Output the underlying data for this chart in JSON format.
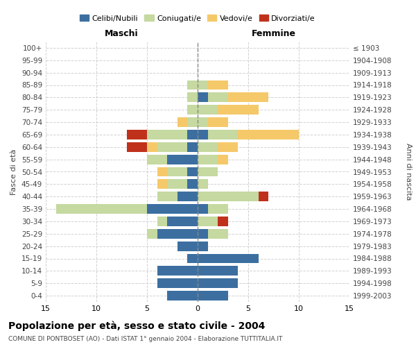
{
  "age_groups": [
    "0-4",
    "5-9",
    "10-14",
    "15-19",
    "20-24",
    "25-29",
    "30-34",
    "35-39",
    "40-44",
    "45-49",
    "50-54",
    "55-59",
    "60-64",
    "65-69",
    "70-74",
    "75-79",
    "80-84",
    "85-89",
    "90-94",
    "95-99",
    "100+"
  ],
  "birth_years": [
    "1999-2003",
    "1994-1998",
    "1989-1993",
    "1984-1988",
    "1979-1983",
    "1974-1978",
    "1969-1973",
    "1964-1968",
    "1959-1963",
    "1954-1958",
    "1949-1953",
    "1944-1948",
    "1939-1943",
    "1934-1938",
    "1929-1933",
    "1924-1928",
    "1919-1923",
    "1914-1918",
    "1909-1913",
    "1904-1908",
    "≤ 1903"
  ],
  "males": {
    "celibi": [
      3,
      4,
      4,
      1,
      2,
      4,
      3,
      5,
      2,
      1,
      1,
      3,
      1,
      1,
      0,
      0,
      0,
      0,
      0,
      0,
      0
    ],
    "coniugati": [
      0,
      0,
      0,
      0,
      0,
      1,
      1,
      9,
      2,
      2,
      2,
      2,
      3,
      4,
      1,
      1,
      1,
      1,
      0,
      0,
      0
    ],
    "vedovi": [
      0,
      0,
      0,
      0,
      0,
      0,
      0,
      0,
      0,
      1,
      1,
      0,
      1,
      0,
      1,
      0,
      0,
      0,
      0,
      0,
      0
    ],
    "divorziati": [
      0,
      0,
      0,
      0,
      0,
      0,
      0,
      0,
      0,
      0,
      0,
      0,
      2,
      2,
      0,
      0,
      0,
      0,
      0,
      0,
      0
    ]
  },
  "females": {
    "nubili": [
      3,
      4,
      4,
      6,
      1,
      1,
      0,
      1,
      0,
      0,
      0,
      0,
      0,
      1,
      0,
      0,
      1,
      0,
      0,
      0,
      0
    ],
    "coniugate": [
      0,
      0,
      0,
      0,
      0,
      2,
      2,
      2,
      6,
      1,
      2,
      2,
      2,
      3,
      1,
      2,
      2,
      1,
      0,
      0,
      0
    ],
    "vedove": [
      0,
      0,
      0,
      0,
      0,
      0,
      0,
      0,
      0,
      0,
      0,
      1,
      2,
      6,
      2,
      4,
      4,
      2,
      0,
      0,
      0
    ],
    "divorziate": [
      0,
      0,
      0,
      0,
      0,
      0,
      1,
      0,
      1,
      0,
      0,
      0,
      0,
      0,
      0,
      0,
      0,
      0,
      0,
      0,
      0
    ]
  },
  "colors": {
    "celibi_nubili": "#3c6fa0",
    "coniugati": "#c5d9a0",
    "vedovi": "#f5c96a",
    "divorziati": "#c0311b"
  },
  "title": "Popolazione per età, sesso e stato civile - 2004",
  "subtitle": "COMUNE DI PONTBOSET (AO) - Dati ISTAT 1° gennaio 2004 - Elaborazione TUTTITALIA.IT",
  "xlabel_left": "Maschi",
  "xlabel_right": "Femmine",
  "ylabel_left": "Fasce di età",
  "ylabel_right": "Anni di nascita",
  "legend_labels": [
    "Celibi/Nubili",
    "Coniugati/e",
    "Vedovi/e",
    "Divorziati/e"
  ],
  "xlim": 15,
  "background_color": "#ffffff",
  "grid_color": "#cccccc"
}
